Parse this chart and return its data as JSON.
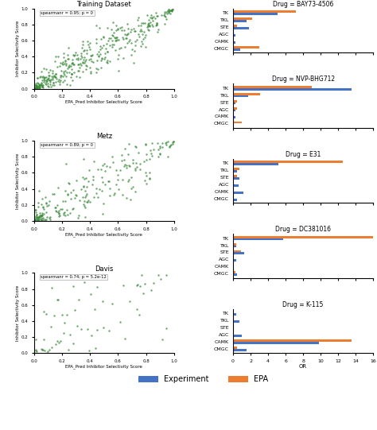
{
  "scatter_plots": [
    {
      "title": "Training Dataset",
      "annotation": "spearmanr = 0.95; p = 0",
      "xlabel": "EPA_Pred Inhibitor Selectivity Score",
      "ylabel": "Inhibitor Selectivity Score",
      "n": 400,
      "corr": 0.95
    },
    {
      "title": "Metz",
      "annotation": "spearmanr = 0.89; p = 0",
      "xlabel": "EPA_Pred Inhibitor Selectivity Score",
      "ylabel": "Inhibitor Selectivity Score",
      "n": 250,
      "corr": 0.89
    },
    {
      "title": "Davis",
      "annotation": "spearmanr = 0.74; p = 5.2e-12",
      "xlabel": "EPA_Pred Inhibitor Selectivity Score",
      "ylabel": "Inhibitor Selectivity Score",
      "n": 70,
      "corr": 0.74
    }
  ],
  "bar_plots": [
    {
      "title": "Drug = BAY73-4506",
      "categories": [
        "TK",
        "TKL",
        "STE",
        "AGC",
        "CAMK",
        "CMGC"
      ],
      "experiment": [
        5.1,
        1.5,
        1.8,
        0.3,
        0.3,
        0.8
      ],
      "epa": [
        7.2,
        2.2,
        0.5,
        0.05,
        0.05,
        3.0
      ]
    },
    {
      "title": "Drug = NVP-BHG712",
      "categories": [
        "TK",
        "TKL",
        "STE",
        "AGC",
        "CAMK",
        "CMGC"
      ],
      "experiment": [
        13.5,
        1.7,
        0.3,
        0.3,
        0.3,
        0.05
      ],
      "epa": [
        9.0,
        3.1,
        0.5,
        0.5,
        0.05,
        1.0
      ]
    },
    {
      "title": "Drug = E31",
      "categories": [
        "TK",
        "TKL",
        "STE",
        "AGC",
        "CAMK",
        "CMGC"
      ],
      "experiment": [
        5.2,
        0.5,
        0.7,
        0.6,
        1.2,
        0.5
      ],
      "epa": [
        12.5,
        0.7,
        0.5,
        0.05,
        0.05,
        0.05
      ]
    },
    {
      "title": "Drug = DC381016",
      "categories": [
        "TK",
        "TKL",
        "STE",
        "AGC",
        "CAMK",
        "CMGC"
      ],
      "experiment": [
        5.7,
        0.4,
        1.3,
        0.4,
        0.05,
        0.5
      ],
      "epa": [
        16.0,
        0.4,
        0.9,
        0.05,
        0.05,
        0.3
      ]
    },
    {
      "title": "Drug = K-115",
      "categories": [
        "TK",
        "TKL",
        "STE",
        "AGC",
        "CAMK",
        "CMGC"
      ],
      "experiment": [
        0.4,
        0.7,
        0.05,
        1.0,
        9.8,
        1.5
      ],
      "epa": [
        0.05,
        0.05,
        0.05,
        0.05,
        13.5,
        0.5
      ]
    }
  ],
  "bar_xlabel": "OR",
  "scatter_color": "#3a8a3a",
  "bar_experiment_color": "#4472c4",
  "bar_epa_color": "#ed7d31",
  "scatter_xlim": [
    0.0,
    1.0
  ],
  "scatter_ylim": [
    0.0,
    1.0
  ],
  "bar_xlim": [
    0,
    16
  ],
  "bar_xticks": [
    0,
    2,
    4,
    6,
    8,
    10,
    12,
    14,
    16
  ],
  "legend_labels": [
    "Experiment",
    "EPA"
  ]
}
